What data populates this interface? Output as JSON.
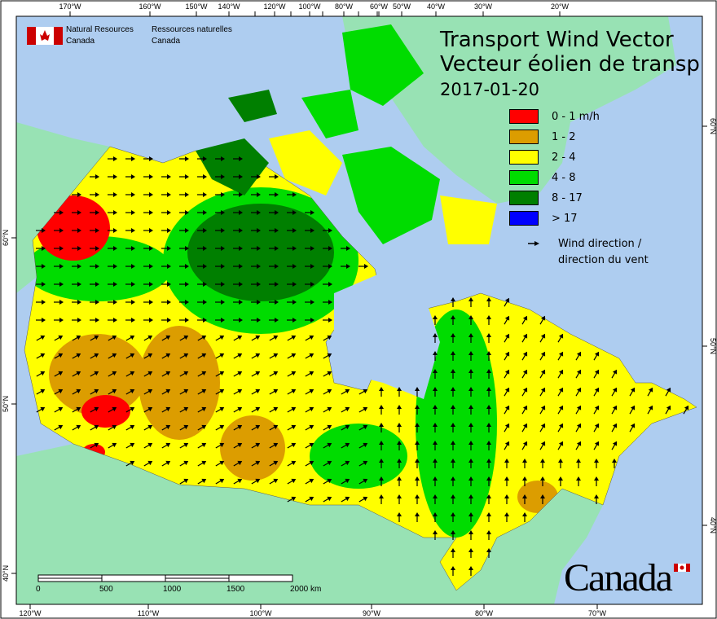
{
  "header": {
    "org_en_line1": "Natural Resources",
    "org_en_line2": "Canada",
    "org_fr_line1": "Ressources naturelles",
    "org_fr_line2": "Canada"
  },
  "title": {
    "en": "Transport Wind Vector",
    "fr": "Vecteur éolien de transp",
    "date": "2017-01-20"
  },
  "legend": {
    "items": [
      {
        "label": "0 - 1 m/h",
        "color": "#ff0000"
      },
      {
        "label": "1 - 2",
        "color": "#dc9d00"
      },
      {
        "label": "2 - 4",
        "color": "#ffff00"
      },
      {
        "label": "4 - 8",
        "color": "#00dc00"
      },
      {
        "label": "8 - 17",
        "color": "#007f00"
      },
      {
        "label": "> 17",
        "color": "#0000ff"
      }
    ],
    "arrow_label_line1": "Wind direction /",
    "arrow_label_line2": "direction du vent"
  },
  "axes": {
    "top": [
      "170°W",
      "160°W",
      "150°W",
      "140°W",
      "120°W",
      "100°W",
      "80°W",
      "60°W",
      "50°W",
      "40°W",
      "30°W",
      "20°W"
    ],
    "bottom": [
      "120°W",
      "110°W",
      "100°W",
      "90°W",
      "80°W",
      "70°W"
    ],
    "left": [
      "60°N",
      "50°N",
      "40°N"
    ],
    "right": [
      "60°N",
      "50°N",
      "40°N"
    ]
  },
  "scale_bar": {
    "labels": [
      "0",
      "500",
      "1000",
      "1500",
      "2000 km"
    ]
  },
  "wordmark": "Canada",
  "colors": {
    "ocean": "#aecdf0",
    "land": "#98e2b4",
    "frame": "#000000"
  }
}
